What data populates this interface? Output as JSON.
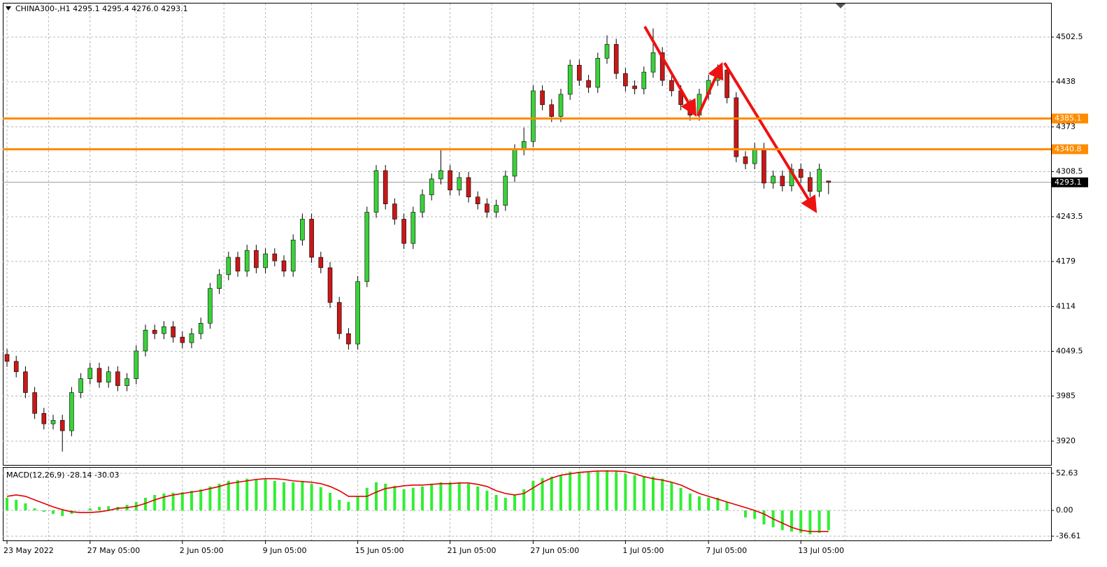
{
  "chart_data": [
    {
      "type": "candlestick",
      "title": "CHINA300-,H1  4295.1 4295.4 4276.0 4293.1",
      "categories": [
        "23 May 2022",
        null,
        null,
        null,
        null,
        null,
        null,
        null,
        null,
        "27 May 05:00",
        null,
        null,
        null,
        null,
        null,
        null,
        null,
        null,
        null,
        "2 Jun 05:00",
        null,
        null,
        null,
        null,
        null,
        null,
        null,
        null,
        "9 Jun 05:00",
        null,
        null,
        null,
        null,
        null,
        null,
        null,
        null,
        null,
        "15 Jun 05:00",
        null,
        null,
        null,
        null,
        null,
        null,
        null,
        null,
        null,
        "21 Jun 05:00",
        null,
        null,
        null,
        null,
        null,
        null,
        null,
        null,
        "27 Jun 05:00",
        null,
        null,
        null,
        null,
        null,
        null,
        null,
        null,
        null,
        "1 Jul 05:00",
        null,
        null,
        null,
        null,
        null,
        null,
        null,
        null,
        "7 Jul 05:00",
        null,
        null,
        null,
        null,
        null,
        null,
        null,
        null,
        null,
        "13 Jul 05:00",
        null,
        null,
        null
      ],
      "open": [
        4045,
        4035,
        4020,
        3990,
        3960,
        3945,
        3950,
        3935,
        3990,
        4010,
        4025,
        4005,
        4020,
        4000,
        4010,
        4050,
        4080,
        4075,
        4085,
        4070,
        4062,
        4075,
        4090,
        4140,
        4160,
        4185,
        4165,
        4195,
        4170,
        4190,
        4180,
        4165,
        4210,
        4240,
        4185,
        4170,
        4120,
        4075,
        4060,
        4150,
        4250,
        4310,
        4262,
        4240,
        4205,
        4250,
        4275,
        4298,
        4310,
        4282,
        4300,
        4272,
        4262,
        4250,
        4260,
        4302,
        4340,
        4352,
        4425,
        4405,
        4388,
        4420,
        4462,
        4440,
        4430,
        4472,
        4492,
        4450,
        4432,
        4428,
        4452,
        4480,
        4440,
        4425,
        4405,
        4390,
        4420,
        4440,
        4455,
        4415,
        4330,
        4320,
        4342,
        4292,
        4302,
        4288,
        4312,
        4300,
        4280,
        4295.1
      ],
      "high": [
        4053,
        4043,
        4028,
        3998,
        3968,
        3958,
        3958,
        3998,
        4018,
        4033,
        4033,
        4028,
        4028,
        4018,
        4058,
        4088,
        4088,
        4093,
        4093,
        4078,
        4083,
        4098,
        4148,
        4168,
        4193,
        4193,
        4203,
        4203,
        4198,
        4198,
        4188,
        4218,
        4248,
        4248,
        4193,
        4178,
        4128,
        4083,
        4158,
        4258,
        4318,
        4318,
        4270,
        4248,
        4258,
        4283,
        4306,
        4342,
        4318,
        4308,
        4308,
        4280,
        4270,
        4268,
        4310,
        4348,
        4372,
        4433,
        4433,
        4413,
        4428,
        4470,
        4470,
        4448,
        4480,
        4505,
        4500,
        4458,
        4440,
        4460,
        4515,
        4488,
        4448,
        4433,
        4413,
        4428,
        4448,
        4463,
        4463,
        4423,
        4338,
        4350,
        4350,
        4310,
        4310,
        4320,
        4320,
        4308,
        4320,
        4295.4
      ],
      "low": [
        4027,
        4012,
        3982,
        3952,
        3937,
        3937,
        3905,
        3927,
        3982,
        4002,
        3997,
        3997,
        3992,
        3992,
        4002,
        4042,
        4067,
        4067,
        4062,
        4054,
        4054,
        4067,
        4082,
        4132,
        4152,
        4157,
        4157,
        4162,
        4162,
        4172,
        4157,
        4157,
        4202,
        4177,
        4162,
        4112,
        4067,
        4052,
        4052,
        4142,
        4242,
        4254,
        4232,
        4197,
        4197,
        4242,
        4267,
        4290,
        4274,
        4274,
        4264,
        4254,
        4242,
        4242,
        4252,
        4294,
        4332,
        4344,
        4397,
        4380,
        4380,
        4412,
        4432,
        4422,
        4422,
        4464,
        4442,
        4424,
        4420,
        4420,
        4444,
        4432,
        4417,
        4397,
        4382,
        4382,
        4412,
        4432,
        4407,
        4322,
        4312,
        4312,
        4284,
        4284,
        4280,
        4280,
        4292,
        4272,
        4272,
        4276
      ],
      "close": [
        4035,
        4020,
        3990,
        3960,
        3945,
        3950,
        3935,
        3990,
        4010,
        4025,
        4005,
        4020,
        4000,
        4010,
        4050,
        4080,
        4075,
        4085,
        4070,
        4062,
        4075,
        4090,
        4140,
        4160,
        4185,
        4165,
        4195,
        4170,
        4190,
        4180,
        4165,
        4210,
        4240,
        4185,
        4170,
        4120,
        4075,
        4060,
        4150,
        4250,
        4310,
        4262,
        4240,
        4205,
        4250,
        4275,
        4298,
        4310,
        4282,
        4300,
        4272,
        4262,
        4250,
        4260,
        4302,
        4340,
        4352,
        4425,
        4405,
        4388,
        4420,
        4462,
        4440,
        4430,
        4472,
        4492,
        4450,
        4432,
        4428,
        4452,
        4480,
        4440,
        4425,
        4405,
        4390,
        4420,
        4440,
        4455,
        4415,
        4330,
        4320,
        4342,
        4292,
        4302,
        4288,
        4312,
        4300,
        4280,
        4312,
        4293.1
      ],
      "up_color": "#3ad23a",
      "down_color": "#c81818",
      "ylim": [
        3885.7,
        4550.9
      ],
      "yticks": [
        4502.5,
        4438,
        4373,
        4308.5,
        4243.5,
        4179,
        4114,
        4049.5,
        3985,
        3920
      ],
      "levels": [
        {
          "value": 4385.1,
          "color": "#ff8c00"
        },
        {
          "value": 4340.8,
          "color": "#ff8c00"
        }
      ],
      "grid": true
    },
    {
      "type": "macd",
      "title": "MACD(12,26,9) -28.14 -30.03",
      "series": [
        {
          "name": "MACD",
          "color": "#33ee33",
          "values": [
            18,
            15,
            10,
            3,
            -2,
            -5,
            -8,
            -5,
            0,
            3,
            5,
            6,
            5,
            8,
            12,
            18,
            22,
            24,
            25,
            26,
            28,
            30,
            34,
            38,
            42,
            43,
            45,
            44,
            44,
            42,
            40,
            40,
            42,
            38,
            33,
            25,
            15,
            12,
            20,
            32,
            40,
            38,
            35,
            30,
            32,
            34,
            38,
            40,
            40,
            40,
            38,
            34,
            28,
            22,
            18,
            22,
            30,
            42,
            46,
            48,
            50,
            55,
            55,
            54,
            55,
            57,
            55,
            52,
            50,
            48,
            48,
            45,
            40,
            32,
            24,
            20,
            18,
            18,
            12,
            0,
            -10,
            -12,
            -20,
            -24,
            -28,
            -30,
            -32,
            -34,
            -32,
            -28.14
          ]
        },
        {
          "name": "Signal",
          "color": "#e00000",
          "values": [
            20,
            22,
            20,
            15,
            10,
            5,
            1,
            -2,
            -3,
            -3,
            -2,
            0,
            3,
            4,
            6,
            10,
            15,
            19,
            22,
            24,
            26,
            28,
            31,
            34,
            38,
            40,
            42,
            44,
            45,
            45,
            44,
            42,
            41,
            40,
            38,
            34,
            28,
            20,
            20,
            20,
            26,
            31,
            33,
            35,
            36,
            36,
            37,
            38,
            38,
            39,
            39,
            37,
            34,
            28,
            24,
            22,
            24,
            32,
            40,
            46,
            50,
            52,
            54,
            55,
            56,
            56,
            56,
            55,
            52,
            48,
            45,
            43,
            40,
            36,
            30,
            24,
            20,
            16,
            12,
            8,
            4,
            0,
            -5,
            -12,
            -18,
            -24,
            -28,
            -30,
            -30,
            -30.03
          ]
        }
      ],
      "ylim": [
        -42.6,
        61.6
      ],
      "yticks": [
        52.63,
        {
          "value": 0,
          "label": "0.00"
        },
        -36.61
      ],
      "grid": true
    }
  ]
}
